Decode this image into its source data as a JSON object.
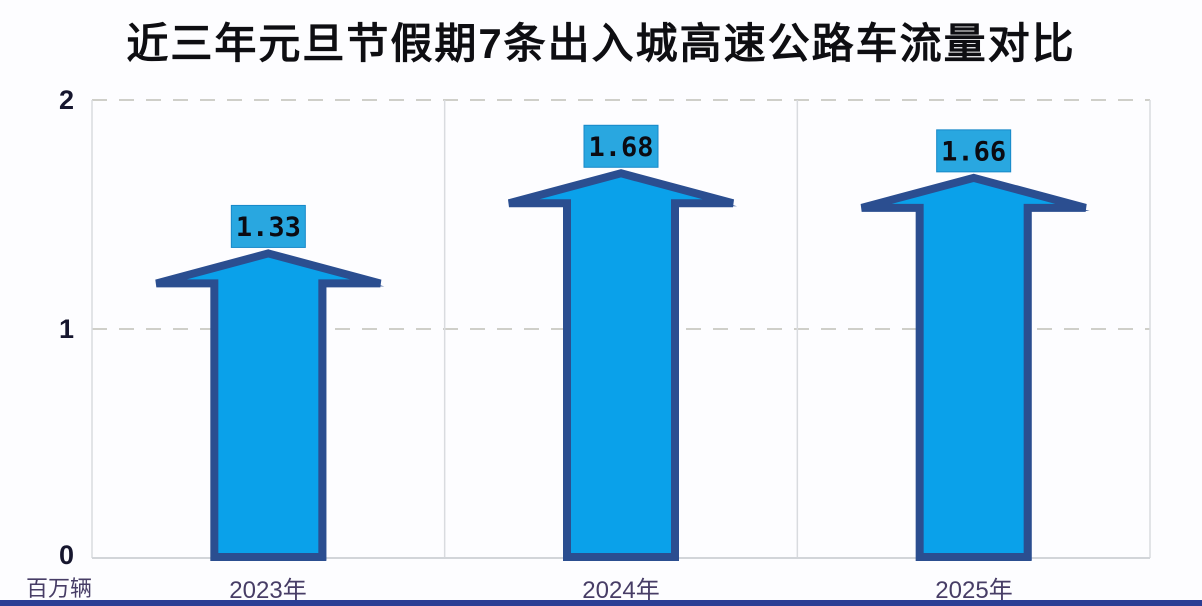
{
  "title": "近三年元旦节假期7条出入城高速公路车流量对比",
  "chart_data": {
    "type": "bar",
    "variant": "block-up-arrow-bars",
    "title": "近三年元旦节假期7条出入城高速公路车流量对比",
    "categories": [
      "2023年",
      "2024年",
      "2025年"
    ],
    "values": [
      1.33,
      1.68,
      1.66
    ],
    "value_labels": [
      "1.33",
      "1.68",
      "1.66"
    ],
    "unit_label": "百万辆",
    "xlabel": "",
    "ylabel": "百万辆",
    "ylim": [
      0,
      2
    ],
    "yticks": [
      "2",
      "1",
      "0"
    ],
    "grid": "dashed horizontal gridlines at 1 and 2, light vertical panel dividers per category",
    "legend": "none",
    "colors": {
      "arrow_fill": "#0aa1ea",
      "arrow_edge": "#2b4e90",
      "label_box_fill": "#29a7e0",
      "label_box_edge": "#1788c8",
      "label_text": "#0b0b12",
      "gridline": "#cfcfc9",
      "panel_border": "#d9dbdf",
      "axis_line": "#d2d5d9",
      "axis_tick_text": "#16162e",
      "category_text": "#473d66",
      "bottom_bar": "#2b3e94",
      "background": "#fdfdff"
    }
  }
}
